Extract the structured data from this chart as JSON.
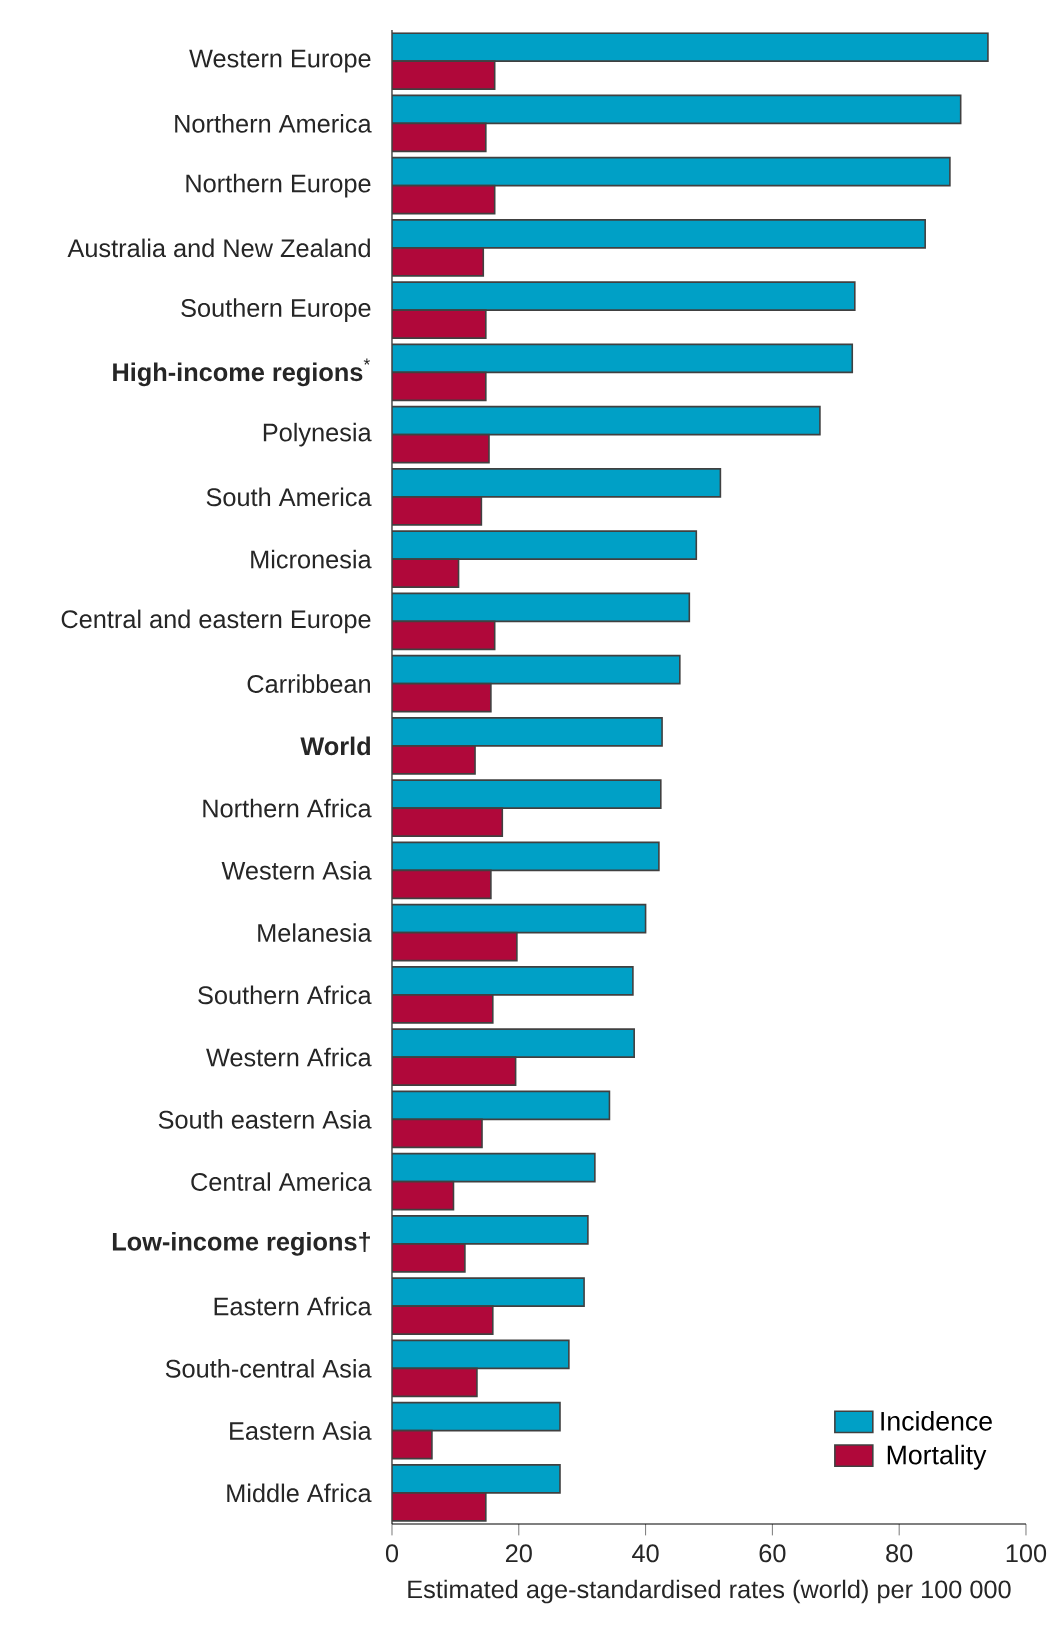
{
  "chart_data": {
    "type": "bar",
    "orientation": "horizontal",
    "categories": [
      "Western Europe",
      "Northern America",
      "Northern Europe",
      "Australia and New Zealand",
      "Southern Europe",
      "**High-income regions**$^{*}$",
      "Polynesia",
      "South America",
      "Micronesia",
      "Central and eastern Europe",
      "Carribbean",
      "**World**",
      "Northern Africa",
      "Western Asia",
      "Melanesia",
      "Southern Africa",
      "Western Africa",
      "South eastern Asia",
      "Central America",
      "**Low-income regions†**",
      "Eastern Africa",
      "South-central Asia",
      "Eastern Asia",
      "Middle Africa"
    ],
    "series": [
      {
        "name": "Incidence",
        "color": "#00a0c6",
        "values": [
          94.0,
          89.7,
          88.0,
          84.1,
          73.0,
          72.6,
          67.5,
          51.8,
          48.0,
          46.9,
          45.4,
          42.6,
          42.4,
          42.1,
          40.0,
          38.0,
          38.2,
          34.3,
          32.0,
          30.9,
          30.3,
          27.9,
          26.5,
          26.5
        ]
      },
      {
        "name": "Mortality",
        "color": "#b0083a",
        "values": [
          16.2,
          14.8,
          16.2,
          14.4,
          14.8,
          14.8,
          15.3,
          14.1,
          10.5,
          16.2,
          15.6,
          13.1,
          17.4,
          15.6,
          19.7,
          15.9,
          19.5,
          14.2,
          9.7,
          11.5,
          15.9,
          13.4,
          6.3,
          14.8
        ]
      }
    ],
    "xlim": [
      0,
      100
    ],
    "xticks": [
      0,
      20,
      40,
      60,
      80,
      100
    ],
    "xlabel": "Estimated age-standardised rates (world) per 100 000",
    "legend": "bottom right"
  }
}
